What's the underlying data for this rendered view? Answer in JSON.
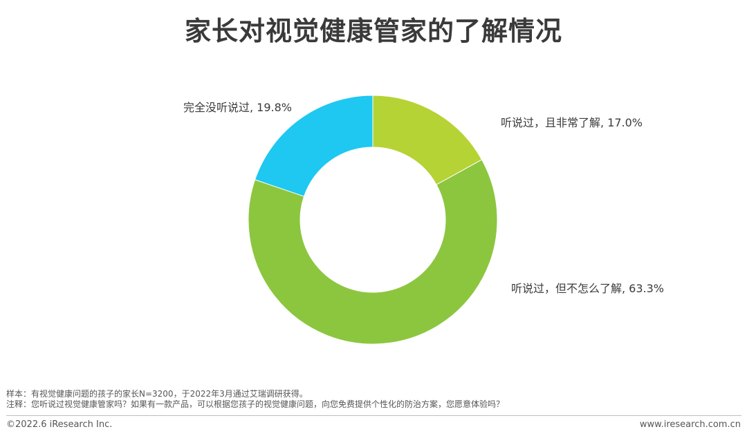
{
  "title": "家长对视觉健康管家的了解情况",
  "chart_data": {
    "type": "pie",
    "categories": [
      "听说过，且非常了解",
      "听说过，但不怎么了解",
      "完全没听说过"
    ],
    "values": [
      17.0,
      63.3,
      19.8
    ],
    "labels": [
      "听说过，且非常了解, 17.0%",
      "听说过，但不怎么了解, 63.3%",
      "完全没听说过, 19.8%"
    ],
    "colors": [
      "#b5d334",
      "#8cc63f",
      "#1ec8f0"
    ],
    "donut": true,
    "start": "12 o'clock",
    "direction": "clockwise"
  },
  "notes": {
    "sample": "样本：有视觉健康问题的孩子的家长N=3200，于2022年3月通过艾瑞调研获得。",
    "remark": "注释：您听说过视觉健康管家吗？如果有一款产品，可以根据您孩子的视觉健康问题，向您免费提供个性化的防治方案，您愿意体验吗？"
  },
  "footer": {
    "copyright": "©2022.6 iResearch Inc.",
    "website": "www.iresearch.com.cn"
  }
}
